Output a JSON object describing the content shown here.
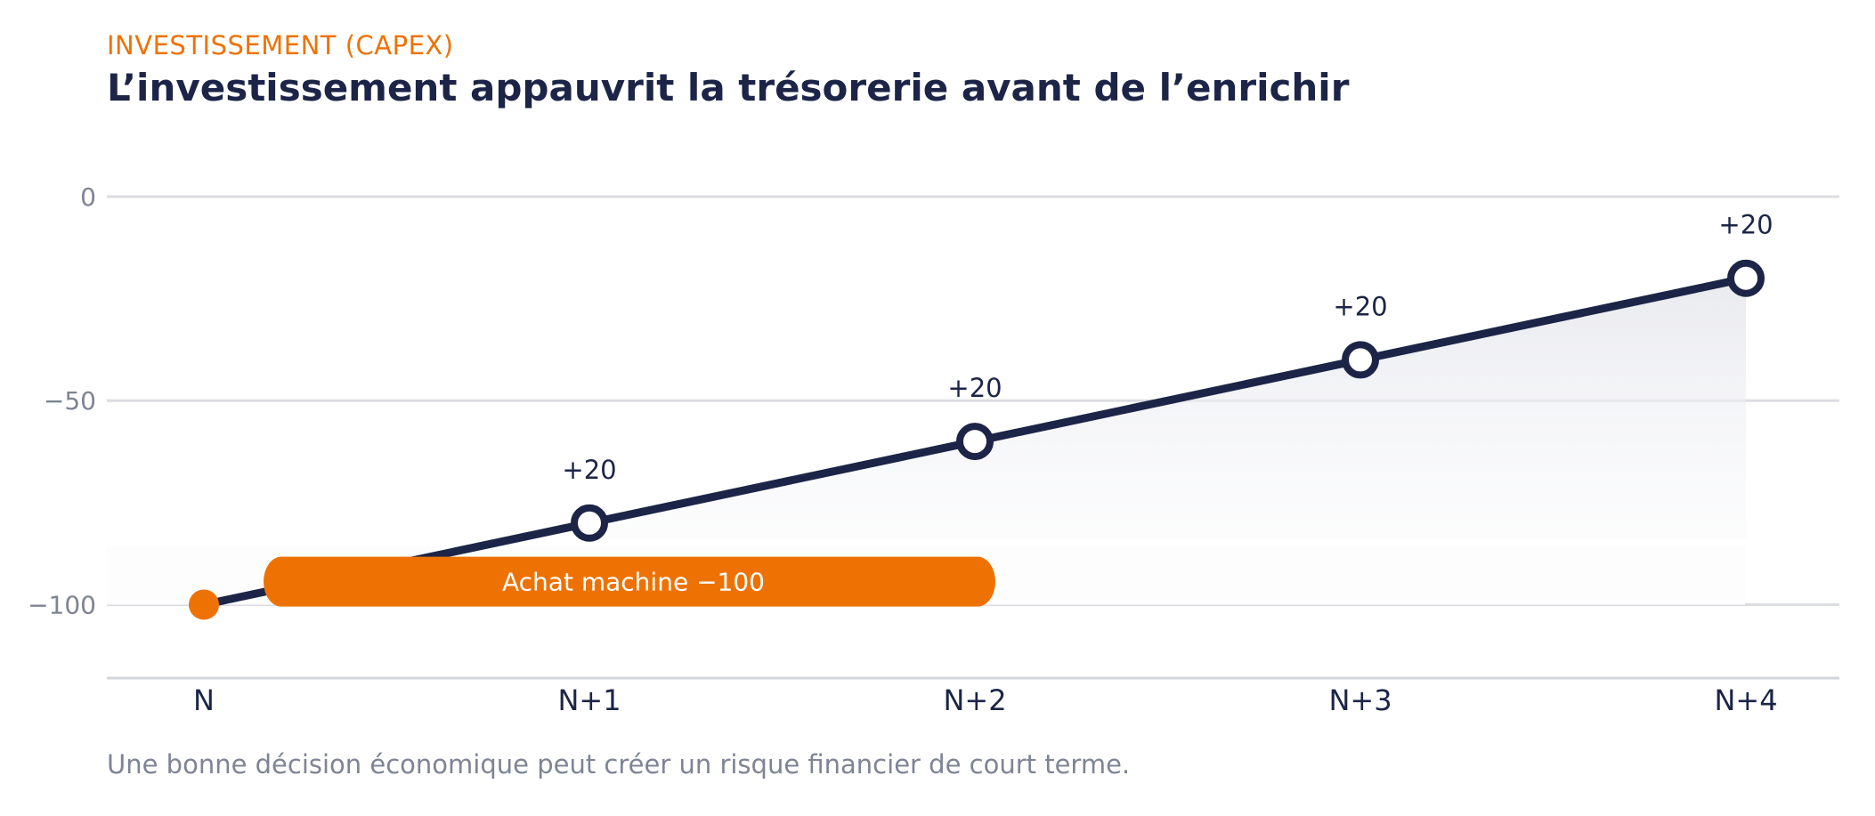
{
  "header": {
    "eyebrow": "INVESTISSEMENT (CAPEX)",
    "title": "L’investissement appauvrit la trésorerie avant de l’enrichir"
  },
  "footnote": "Une bonne décision économique peut créer un risque financier de court terme.",
  "colors": {
    "line": "#1c2547",
    "accent": "#ee7203",
    "grid": "#dcdde3",
    "tick": "#7d8494"
  },
  "chart_data": {
    "type": "line",
    "title": "L’investissement appauvrit la trésorerie avant de l’enrichir",
    "categories": [
      "N",
      "N+1",
      "N+2",
      "N+3",
      "N+4"
    ],
    "values": [
      -100,
      -80,
      -60,
      -40,
      -20
    ],
    "data_labels": [
      "",
      "+20",
      "+20",
      "+20",
      "+20"
    ],
    "ylim": [
      -118,
      0
    ],
    "yticks": [
      0,
      -50,
      -100
    ],
    "ytick_labels": [
      "0",
      "−50",
      "−100"
    ],
    "grid": "horizontal",
    "area_fill": true,
    "annotation": {
      "text": "Achat machine  −100",
      "category": "N",
      "value": -100
    }
  }
}
